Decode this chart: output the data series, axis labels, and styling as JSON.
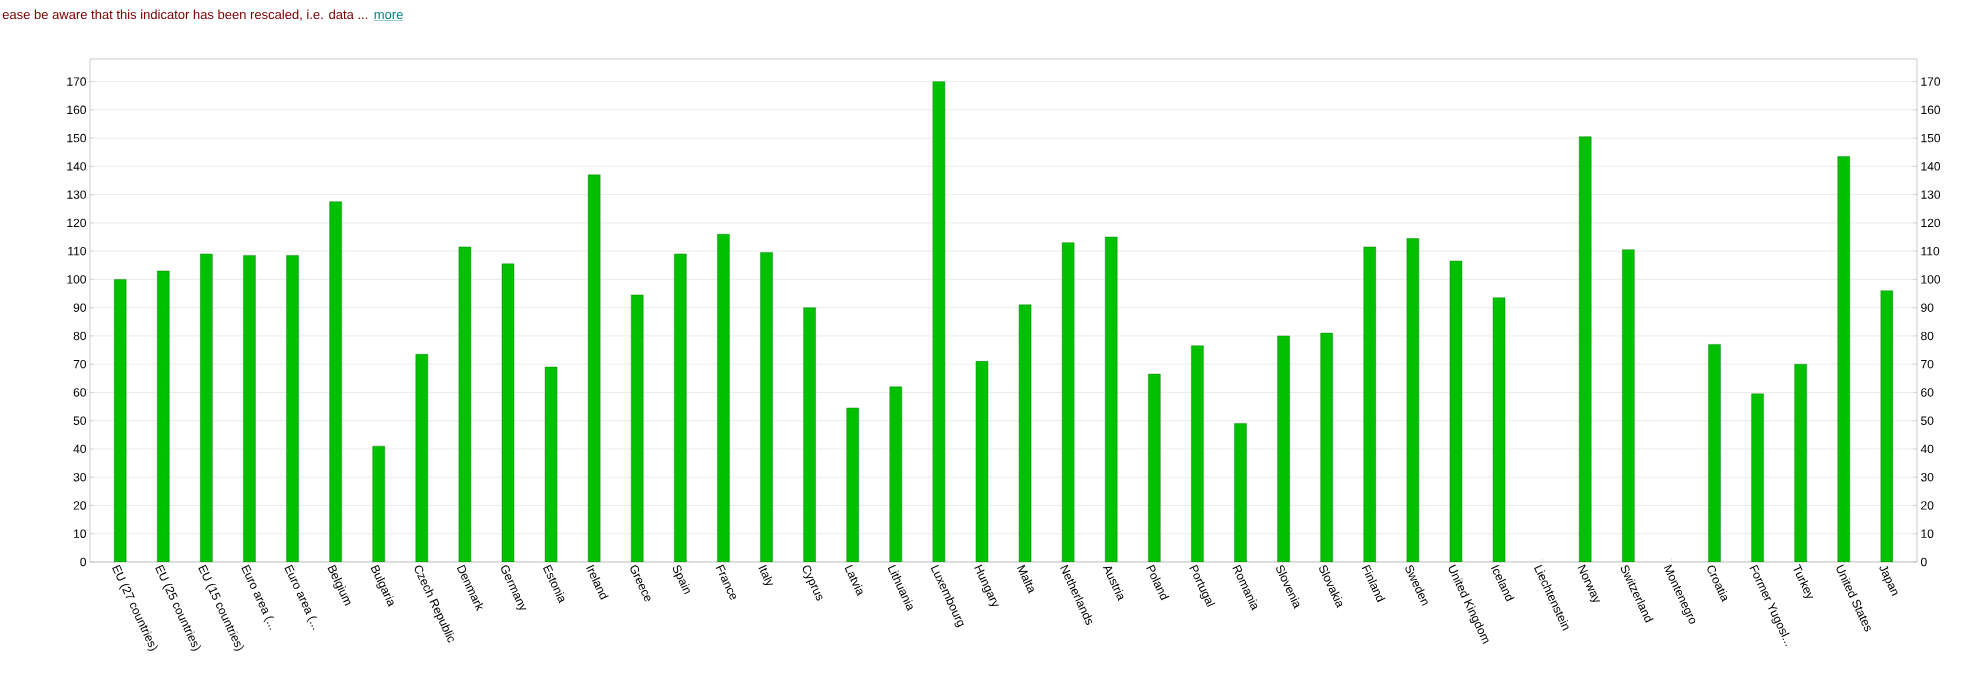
{
  "chart_data": {
    "type": "bar",
    "annotations": [
      "ease be aware that this indicator has been rescaled, i.e. data ...",
      "more"
    ],
    "categories": [
      "EU (27 countries)",
      "EU (25 countries)",
      "EU (15 countries)",
      "Euro area (...",
      "Euro area (...",
      "Belgium",
      "Bulgaria",
      "Czech Republic",
      "Denmark",
      "Germany",
      "Estonia",
      "Ireland",
      "Greece",
      "Spain",
      "France",
      "Italy",
      "Cyprus",
      "Latvia",
      "Lithuania",
      "Luxembourg",
      "Hungary",
      "Malta",
      "Netherlands",
      "Austria",
      "Poland",
      "Portugal",
      "Romania",
      "Slovenia",
      "Slovakia",
      "Finland",
      "Sweden",
      "United Kingdom",
      "Iceland",
      "Liechtenstein",
      "Norway",
      "Switzerland",
      "Montenegro",
      "Croatia",
      "Former Yugosl...",
      "Turkey",
      "United States",
      "Japan"
    ],
    "values": [
      100,
      103,
      109,
      108.5,
      108.5,
      127.5,
      41,
      73.5,
      111.5,
      105.5,
      69,
      137,
      94.5,
      109,
      116,
      109.5,
      90,
      54.5,
      62,
      170,
      71,
      91,
      113,
      115,
      66.5,
      76.5,
      49,
      80,
      81,
      111.5,
      114.5,
      106.5,
      93.5,
      null,
      150.5,
      110.5,
      null,
      77,
      59.5,
      70,
      143.5,
      96
    ],
    "color": "#00c000",
    "ylim": [
      0,
      178
    ],
    "yticks": [
      0,
      10,
      20,
      30,
      40,
      50,
      60,
      70,
      80,
      90,
      100,
      110,
      120,
      130,
      140,
      150,
      160,
      170
    ],
    "y2lim": [
      0,
      178
    ],
    "y2ticks": [
      0,
      10,
      20,
      30,
      40,
      50,
      60,
      70,
      80,
      90,
      100,
      110,
      120,
      130,
      140,
      150,
      160,
      170
    ],
    "grid": "y"
  }
}
